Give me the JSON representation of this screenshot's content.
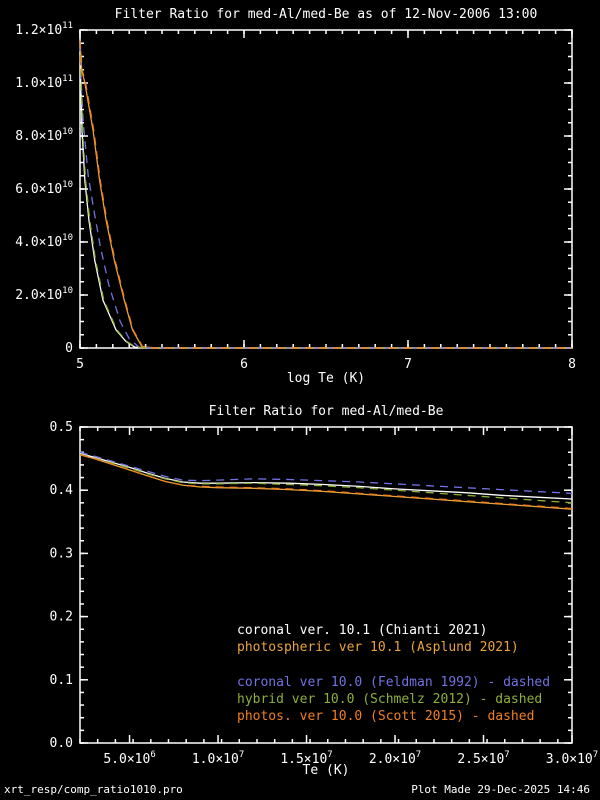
{
  "window": {
    "bg": "#000000",
    "fg": "#ffffff"
  },
  "footer": {
    "left": "xrt_resp/comp_ratio1010.pro",
    "right": "Plot Made 29-Dec-2025 14:46"
  },
  "chart_data": [
    {
      "type": "line",
      "title": "Filter Ratio for med-Al/med-Be as of 12-Nov-2006 13:00",
      "xlabel": "log Te (K)",
      "ylabel": "",
      "xlim": [
        5,
        8
      ],
      "ylim": [
        0,
        120000000000.0
      ],
      "x_minor": 0.1,
      "y_minor": 5000000000.0,
      "grid": false,
      "xticks": [
        {
          "v": 5,
          "label": "5"
        },
        {
          "v": 6,
          "label": "6"
        },
        {
          "v": 7,
          "label": "7"
        },
        {
          "v": 8,
          "label": "8"
        }
      ],
      "yticks": [
        {
          "v": 0,
          "label": "0"
        },
        {
          "v": 20000000000.0,
          "label": "2.0×10^10"
        },
        {
          "v": 40000000000.0,
          "label": "4.0×10^10"
        },
        {
          "v": 60000000000.0,
          "label": "6.0×10^10"
        },
        {
          "v": 80000000000.0,
          "label": "8.0×10^10"
        },
        {
          "v": 100000000000.0,
          "label": "1.0×10^11"
        },
        {
          "v": 120000000000.0,
          "label": "1.2×10^11"
        }
      ],
      "series": [
        {
          "name": "coronal ver. 10.1 (Chianti 2021)",
          "color": "#ffffff",
          "dashed": false,
          "x": [
            5.0,
            5.005,
            5.012,
            5.03,
            5.055,
            5.09,
            5.14,
            5.22,
            5.28,
            5.335,
            5.42,
            8.0
          ],
          "y": [
            116000000000.0,
            100000000000.0,
            82000000000.0,
            63000000000.0,
            48000000000.0,
            33000000000.0,
            18000000000.0,
            6800000000.0,
            2500000000.0,
            300000000.0,
            0,
            0
          ]
        },
        {
          "name": "photospheric ver 10.1 (Asplund 2021)",
          "color": "#e9a33c",
          "dashed": false,
          "x": [
            5.0,
            5.01,
            5.03,
            5.08,
            5.12,
            5.16,
            5.21,
            5.27,
            5.32,
            5.378,
            5.46,
            8.0
          ],
          "y": [
            116000000000.0,
            105000000000.0,
            100000000000.0,
            82000000000.0,
            63000000000.0,
            48000000000.0,
            33000000000.0,
            18000000000.0,
            6800000000.0,
            500000000.0,
            0,
            0
          ]
        },
        {
          "name": "coronal ver 10.0 (Feldman 1992)",
          "color": "#7272e2",
          "dashed": true,
          "x": [
            5.0,
            5.007,
            5.02,
            5.05,
            5.085,
            5.125,
            5.175,
            5.245,
            5.3,
            5.36,
            5.44,
            8.0
          ],
          "y": [
            115000000000.0,
            100000000000.0,
            85000000000.0,
            65000000000.0,
            52000000000.0,
            38000000000.0,
            24000000000.0,
            10000000000.0,
            3500000000.0,
            300000000.0,
            0,
            0
          ]
        },
        {
          "name": "hybrid ver 10.0 (Schmelz 2012)",
          "color": "#8faf3a",
          "dashed": true,
          "x": [
            5.0,
            5.008,
            5.016,
            5.034,
            5.06,
            5.095,
            5.145,
            5.225,
            5.285,
            5.34,
            5.43,
            8.0
          ],
          "y": [
            116000000000.0,
            100000000000.0,
            82000000000.0,
            63000000000.0,
            48000000000.0,
            33000000000.0,
            18000000000.0,
            6800000000.0,
            2500000000.0,
            300000000.0,
            0,
            0
          ]
        },
        {
          "name": "photos. ver 10.0 (Scott 2015)",
          "color": "#ef7f1e",
          "dashed": true,
          "x": [
            5.0,
            5.013,
            5.034,
            5.084,
            5.124,
            5.164,
            5.214,
            5.274,
            5.324,
            5.382,
            5.47,
            8.0
          ],
          "y": [
            116000000000.0,
            105000000000.0,
            100000000000.0,
            82000000000.0,
            63000000000.0,
            48000000000.0,
            33000000000.0,
            18000000000.0,
            6800000000.0,
            500000000.0,
            0,
            0
          ]
        }
      ]
    },
    {
      "type": "line",
      "title": "Filter Ratio for med-Al/med-Be",
      "xlabel": "Te (K)",
      "ylabel": "",
      "xlim": [
        2200000.0,
        30000000.0
      ],
      "ylim": [
        0,
        0.5
      ],
      "x_minor": 1000000.0,
      "y_minor": 0.02,
      "grid": false,
      "xticks": [
        {
          "v": 5000000.0,
          "label": "5.0×10^6"
        },
        {
          "v": 10000000.0,
          "label": "1.0×10^7"
        },
        {
          "v": 15000000.0,
          "label": "1.5×10^7"
        },
        {
          "v": 20000000.0,
          "label": "2.0×10^7"
        },
        {
          "v": 25000000.0,
          "label": "2.5×10^7"
        },
        {
          "v": 30000000.0,
          "label": "3.0×10^7"
        }
      ],
      "yticks": [
        {
          "v": 0.0,
          "label": "0.0"
        },
        {
          "v": 0.1,
          "label": "0.1"
        },
        {
          "v": 0.2,
          "label": "0.2"
        },
        {
          "v": 0.3,
          "label": "0.3"
        },
        {
          "v": 0.4,
          "label": "0.4"
        },
        {
          "v": 0.5,
          "label": "0.5"
        }
      ],
      "series": [
        {
          "name": "coronal ver. 10.1",
          "color": "#ffffff",
          "dashed": false,
          "legend_label": "coronal ver. 10.1 (Chianti 2021)",
          "x": [
            2200000.0,
            3000000.0,
            4000000.0,
            5000000.0,
            6000000.0,
            7000000.0,
            8000000.0,
            9000000.0,
            10000000.0,
            12000000.0,
            14000000.0,
            16000000.0,
            18000000.0,
            20000000.0,
            22000000.0,
            24000000.0,
            26000000.0,
            28000000.0,
            30000000.0
          ],
          "y": [
            0.458,
            0.452,
            0.444,
            0.436,
            0.427,
            0.419,
            0.413,
            0.411,
            0.411,
            0.412,
            0.411,
            0.409,
            0.406,
            0.402,
            0.399,
            0.396,
            0.392,
            0.389,
            0.386
          ]
        },
        {
          "name": "photospheric ver 10.1",
          "color": "#e9a33c",
          "dashed": false,
          "legend_label": "photospheric ver 10.1 (Asplund 2021)",
          "x": [
            2200000.0,
            3000000.0,
            4000000.0,
            5000000.0,
            6000000.0,
            7000000.0,
            8000000.0,
            9000000.0,
            10000000.0,
            12000000.0,
            14000000.0,
            16000000.0,
            18000000.0,
            20000000.0,
            22000000.0,
            24000000.0,
            26000000.0,
            28000000.0,
            30000000.0
          ],
          "y": [
            0.456,
            0.45,
            0.441,
            0.432,
            0.423,
            0.414,
            0.408,
            0.405,
            0.404,
            0.403,
            0.401,
            0.398,
            0.394,
            0.39,
            0.386,
            0.382,
            0.378,
            0.374,
            0.37
          ]
        },
        {
          "name": "coronal ver 10.0",
          "color": "#7272e2",
          "dashed": true,
          "legend_label": "coronal ver 10.0 (Feldman 1992) - dashed",
          "x": [
            2200000.0,
            3000000.0,
            4000000.0,
            5000000.0,
            6000000.0,
            7000000.0,
            8000000.0,
            9000000.0,
            10000000.0,
            12000000.0,
            14000000.0,
            16000000.0,
            18000000.0,
            20000000.0,
            22000000.0,
            24000000.0,
            26000000.0,
            28000000.0,
            30000000.0
          ],
          "y": [
            0.46,
            0.454,
            0.446,
            0.438,
            0.43,
            0.422,
            0.416,
            0.415,
            0.416,
            0.418,
            0.417,
            0.415,
            0.413,
            0.41,
            0.407,
            0.404,
            0.401,
            0.398,
            0.395
          ]
        },
        {
          "name": "hybrid ver 10.0",
          "color": "#8faf3a",
          "dashed": true,
          "legend_label": "hybrid ver 10.0 (Schmelz 2012) - dashed",
          "x": [
            2200000.0,
            3000000.0,
            4000000.0,
            5000000.0,
            6000000.0,
            7000000.0,
            8000000.0,
            9000000.0,
            10000000.0,
            12000000.0,
            14000000.0,
            16000000.0,
            18000000.0,
            20000000.0,
            22000000.0,
            24000000.0,
            26000000.0,
            28000000.0,
            30000000.0
          ],
          "y": [
            0.457,
            0.451,
            0.443,
            0.435,
            0.426,
            0.418,
            0.412,
            0.41,
            0.41,
            0.411,
            0.409,
            0.407,
            0.404,
            0.4,
            0.396,
            0.392,
            0.388,
            0.384,
            0.38
          ]
        },
        {
          "name": "photos. ver 10.0",
          "color": "#ef7f1e",
          "dashed": true,
          "legend_label": "photos. ver 10.0 (Scott 2015) - dashed",
          "x": [
            2200000.0,
            3000000.0,
            4000000.0,
            5000000.0,
            6000000.0,
            7000000.0,
            8000000.0,
            9000000.0,
            10000000.0,
            12000000.0,
            14000000.0,
            16000000.0,
            18000000.0,
            20000000.0,
            22000000.0,
            24000000.0,
            26000000.0,
            28000000.0,
            30000000.0
          ],
          "y": [
            0.456,
            0.45,
            0.441,
            0.432,
            0.423,
            0.414,
            0.408,
            0.406,
            0.405,
            0.404,
            0.402,
            0.399,
            0.395,
            0.391,
            0.387,
            0.383,
            0.379,
            0.375,
            0.371
          ]
        }
      ]
    }
  ]
}
